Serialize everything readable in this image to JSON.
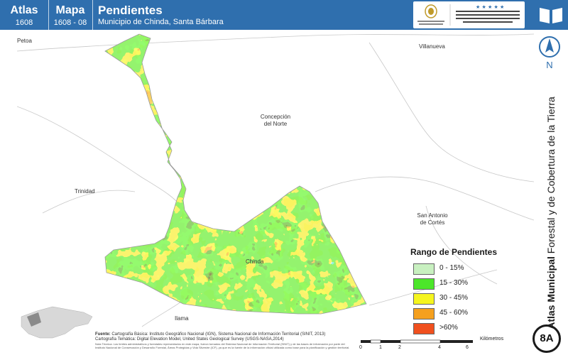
{
  "header": {
    "atlas_label": "Atlas",
    "atlas_number": "1608",
    "mapa_label": "Mapa",
    "mapa_number": "1608 - 08",
    "title": "Pendientes",
    "subtitle": "Municipio de Chinda, Santa Bárbara",
    "logo_left_text": "GOBIERNO DE LA REPÚBLICA DE HONDURAS",
    "logo_right_text": "INSTITUTO NACIONAL DE CONSERVACIÓN Y DESARROLLO FORESTAL ÁREAS PROTEGIDAS Y VIDA SILVESTRE ICF"
  },
  "sidebar": {
    "north_letter": "N",
    "vertical_title_bold": "Atlas Municipal",
    "vertical_title_rest": " Forestal y de Cobertura de la Tierra",
    "badge": "8A"
  },
  "places": {
    "petoa": "Petoa",
    "villanueva": "Villanueva",
    "concepcion": "Concepción\ndel Norte",
    "trinidad": "Trinidad",
    "san_antonio": "San Antonio\nde Cortés",
    "chinda": "Chinda",
    "ilama": "Ilama"
  },
  "legend": {
    "title": "Rango de Pendientes",
    "items": [
      {
        "label": "0 - 15%",
        "color": "#c8f0c0"
      },
      {
        "label": "15 - 30%",
        "color": "#4ce62a"
      },
      {
        "label": "30 - 45%",
        "color": "#f5f51e"
      },
      {
        "label": "45 - 60%",
        "color": "#f5a01e"
      },
      {
        "label": ">60%",
        "color": "#f0501e"
      }
    ]
  },
  "source": {
    "label": "Fuente:",
    "line1": "Cartografía Básica: Instituto Geográfico Nacional (IGN), Sistema Nacional de Información Territorial (SINIT, 2013)",
    "line2": "Cartografía Temática: Digital Elevation Model, United States Geological Survey (USGS-NASA,2014)",
    "note": "Nota Técnica: Los límites administrativos y forestales representados en este mapa, fueron tomados del Sistema Nacional de Información Territorial (SINIT) y de las bases de información por parte del Instituto Nacional de Conservación y Desarrollo Forestal, Áreas Protegidas y Vida Silvestre (ICF), ya que es la fuente de la información oficial utilizada como base para la planificación y gestión territorial."
  },
  "scale": {
    "ticks": [
      "0",
      "1",
      "2",
      "4",
      "6"
    ],
    "unit": "Kilómetros"
  },
  "colors": {
    "header_blue": "#2f6fae",
    "slope_0_15": "#c8f0c0",
    "slope_15_30": "#4ce62a",
    "slope_30_45": "#f5f51e",
    "slope_45_60": "#f5a01e",
    "slope_60": "#f0501e"
  }
}
